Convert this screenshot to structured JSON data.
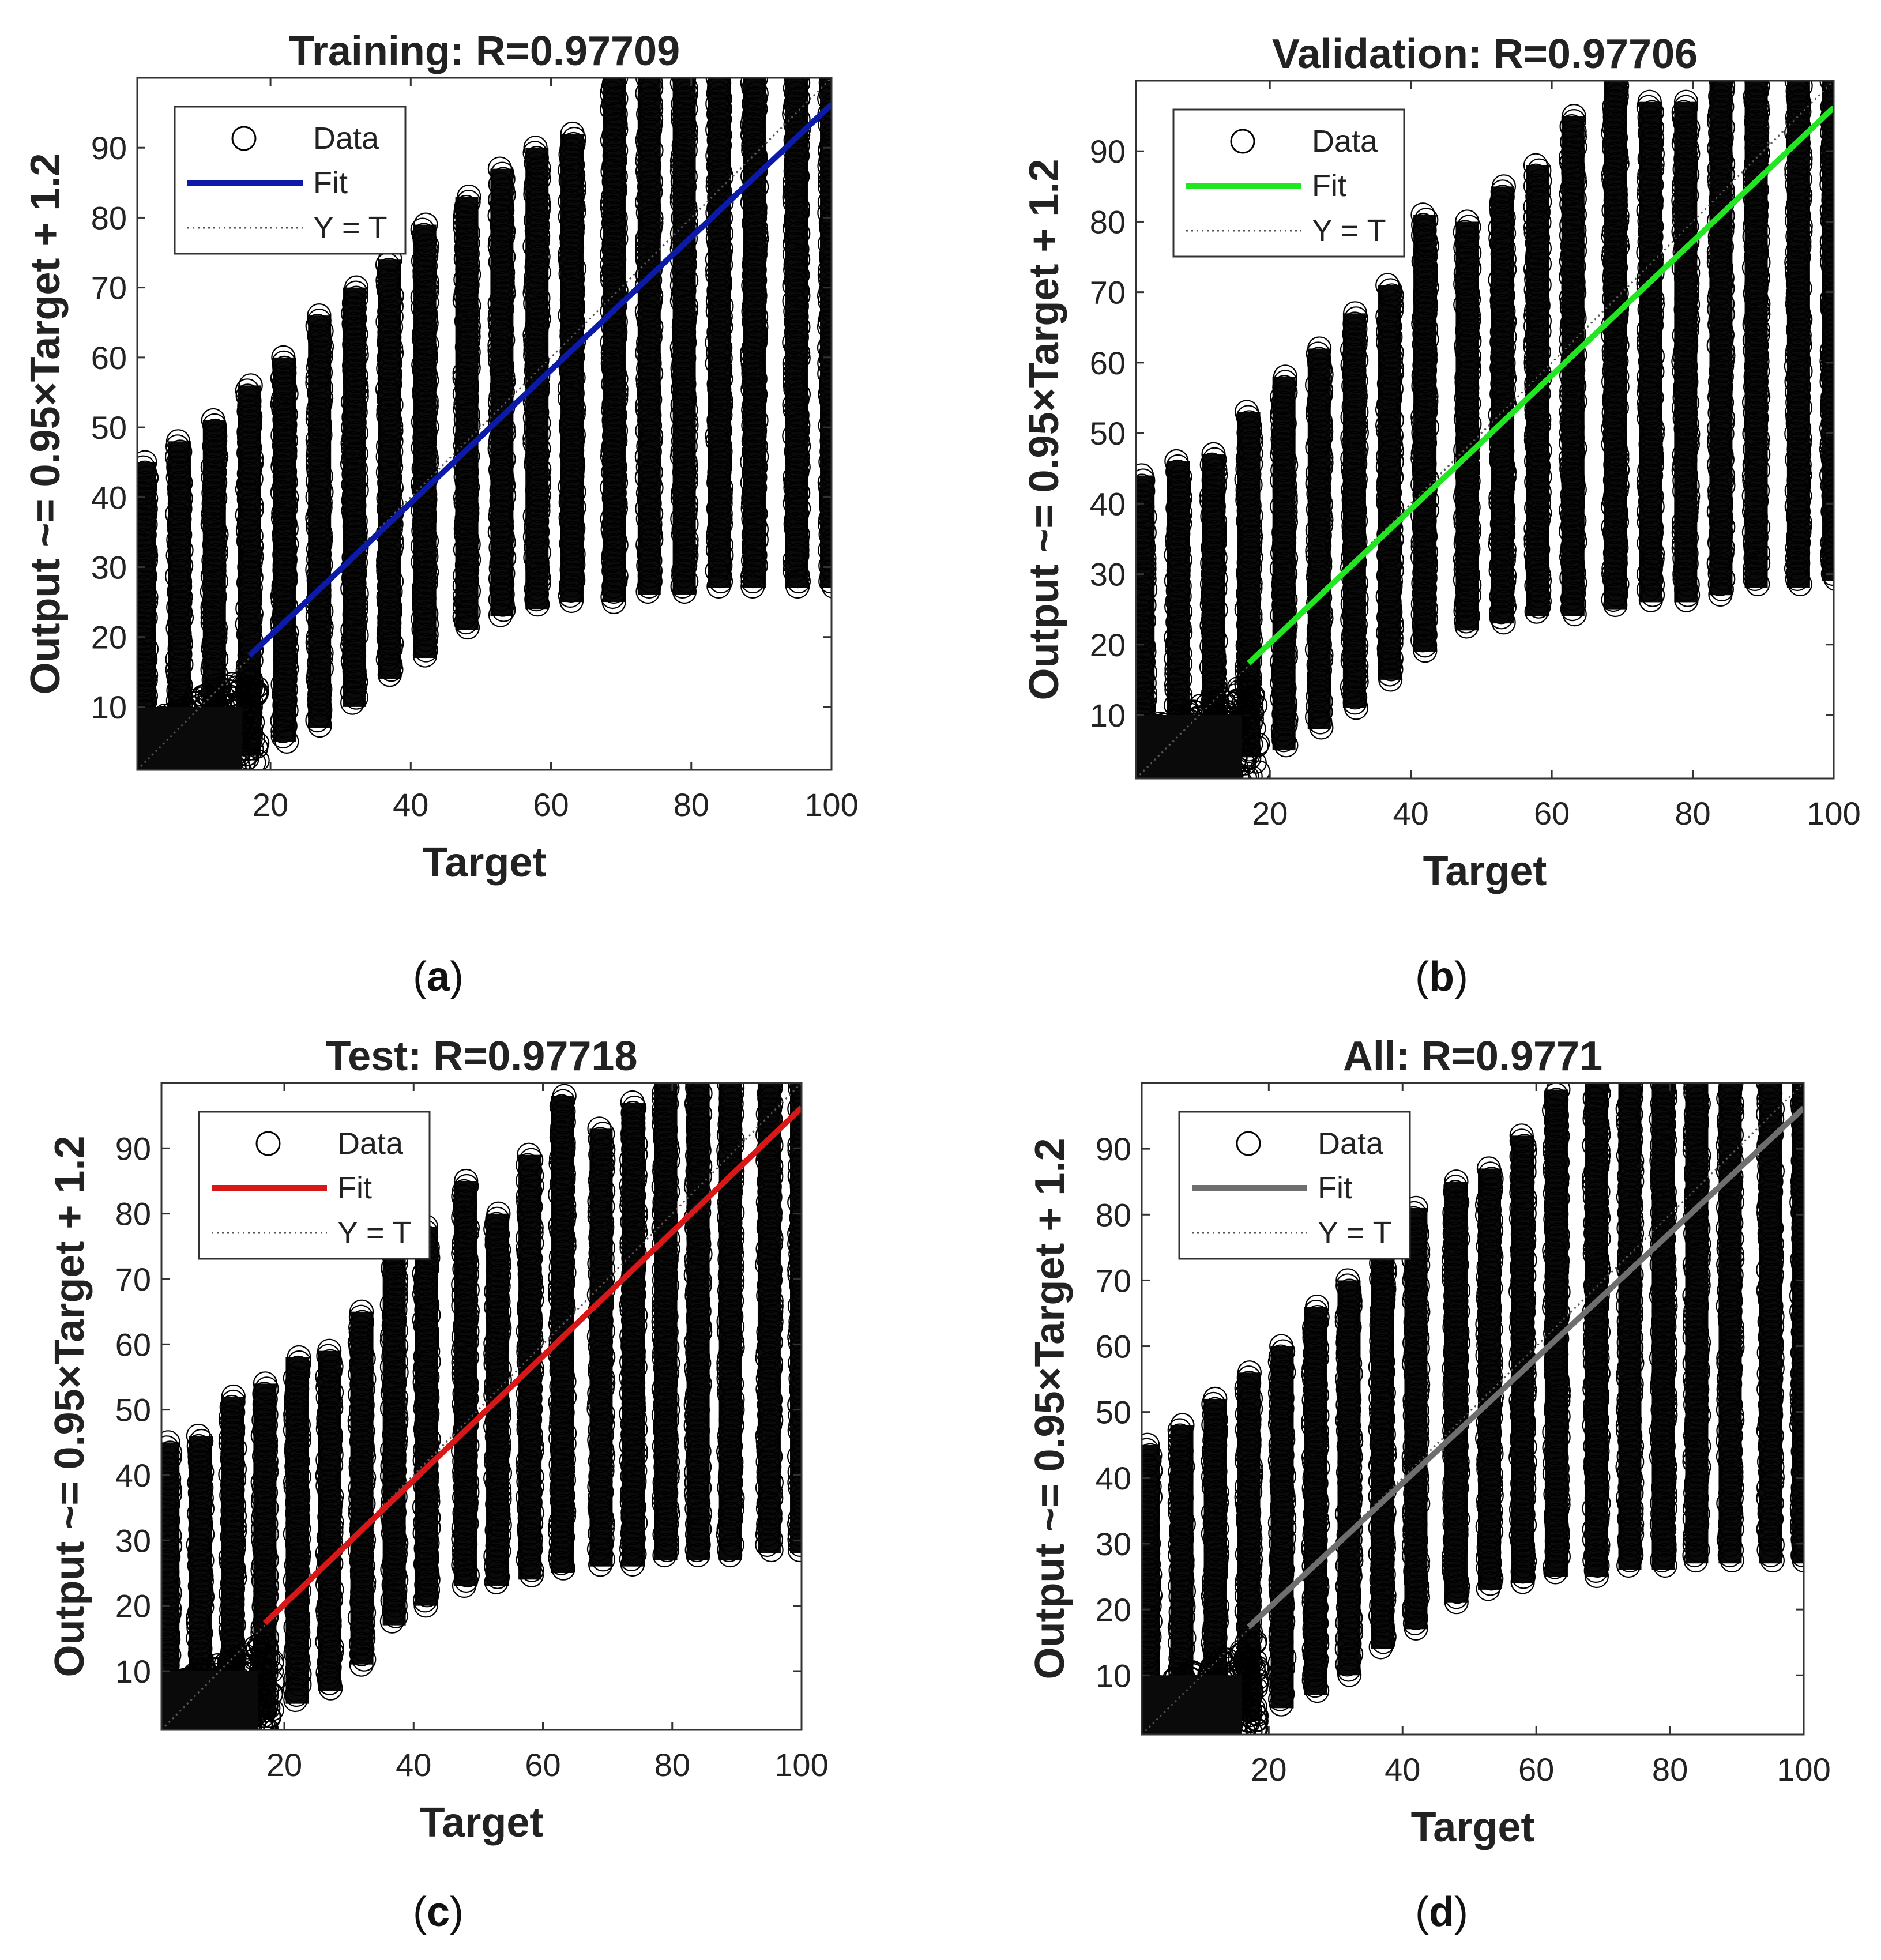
{
  "chart_data": [
    {
      "id": "a",
      "panel_label": "a",
      "type": "scatter",
      "title": "Training: R=0.97709",
      "xlabel": "Target",
      "ylabel": "Output ~= 0.95×Target + 1.2",
      "xlim": [
        1,
        100
      ],
      "ylim": [
        1,
        100
      ],
      "xticks": [
        20,
        40,
        60,
        80,
        100
      ],
      "yticks": [
        10,
        20,
        30,
        40,
        50,
        60,
        70,
        80,
        90
      ],
      "x_columns": [
        2,
        7,
        12,
        17,
        22,
        27,
        32,
        37,
        42,
        48,
        53,
        58,
        63,
        69,
        74,
        79,
        84,
        89,
        95,
        100
      ],
      "data_ranges": [
        [
          1,
          45
        ],
        [
          1,
          48
        ],
        [
          1,
          51
        ],
        [
          3,
          56
        ],
        [
          5,
          60
        ],
        [
          7,
          66
        ],
        [
          10,
          70
        ],
        [
          14,
          74
        ],
        [
          17,
          79
        ],
        [
          21,
          83
        ],
        [
          23,
          87
        ],
        [
          24,
          90
        ],
        [
          25,
          92
        ],
        [
          25,
          100
        ],
        [
          26,
          100
        ],
        [
          26,
          100
        ],
        [
          27,
          100
        ],
        [
          27,
          100
        ],
        [
          27,
          100
        ],
        [
          27,
          100
        ]
      ],
      "fit": {
        "slope": 0.95,
        "intercept": 1.2,
        "color": "#0b1aa8"
      },
      "legend": {
        "entries": [
          "Data",
          "Fit",
          "Y = T"
        ],
        "position": "top-left"
      }
    },
    {
      "id": "b",
      "panel_label": "b",
      "type": "scatter",
      "title": "Validation: R=0.97706",
      "xlabel": "Target",
      "ylabel": "Output ~= 0.95×Target + 1.2",
      "xlim": [
        1,
        100
      ],
      "ylim": [
        1,
        100
      ],
      "xticks": [
        20,
        40,
        60,
        80,
        100
      ],
      "yticks": [
        10,
        20,
        30,
        40,
        50,
        60,
        70,
        80,
        90
      ],
      "x_columns": [
        2,
        7,
        12,
        17,
        22,
        27,
        32,
        37,
        42,
        48,
        53,
        58,
        63,
        69,
        74,
        79,
        84,
        89,
        95,
        100
      ],
      "data_ranges": [
        [
          1,
          44
        ],
        [
          1,
          46
        ],
        [
          1,
          47
        ],
        [
          4,
          53
        ],
        [
          5,
          58
        ],
        [
          8,
          62
        ],
        [
          11,
          67
        ],
        [
          15,
          71
        ],
        [
          19,
          81
        ],
        [
          22,
          80
        ],
        [
          23,
          85
        ],
        [
          24,
          88
        ],
        [
          24,
          95
        ],
        [
          25,
          100
        ],
        [
          26,
          97
        ],
        [
          26,
          97
        ],
        [
          27,
          100
        ],
        [
          28,
          100
        ],
        [
          28,
          100
        ],
        [
          29,
          100
        ]
      ],
      "fit": {
        "slope": 0.95,
        "intercept": 1.2,
        "color": "#22e622"
      },
      "legend": {
        "entries": [
          "Data",
          "Fit",
          "Y = T"
        ],
        "position": "top-left"
      }
    },
    {
      "id": "c",
      "panel_label": "c",
      "type": "scatter",
      "title": "Test: R=0.97718",
      "xlabel": "Target",
      "ylabel": "Output ~= 0.95×Target + 1.2",
      "xlim": [
        1,
        100
      ],
      "ylim": [
        1,
        100
      ],
      "xticks": [
        20,
        40,
        60,
        80,
        100
      ],
      "yticks": [
        10,
        20,
        30,
        40,
        50,
        60,
        70,
        80,
        90
      ],
      "x_columns": [
        2,
        7,
        12,
        17,
        22,
        27,
        32,
        37,
        42,
        48,
        53,
        58,
        63,
        69,
        74,
        79,
        84,
        89,
        95,
        100
      ],
      "data_ranges": [
        [
          1,
          45
        ],
        [
          1,
          46
        ],
        [
          1,
          52
        ],
        [
          3,
          54
        ],
        [
          5,
          58
        ],
        [
          7,
          59
        ],
        [
          11,
          65
        ],
        [
          17,
          74
        ],
        [
          20,
          78
        ],
        [
          23,
          85
        ],
        [
          23,
          80
        ],
        [
          24,
          89
        ],
        [
          25,
          98
        ],
        [
          26,
          93
        ],
        [
          26,
          97
        ],
        [
          27,
          100
        ],
        [
          27,
          100
        ],
        [
          27,
          100
        ],
        [
          28,
          100
        ],
        [
          28,
          100
        ]
      ],
      "fit": {
        "slope": 0.95,
        "intercept": 1.2,
        "color": "#d81818"
      },
      "legend": {
        "entries": [
          "Data",
          "Fit",
          "Y = T"
        ],
        "position": "top-left"
      }
    },
    {
      "id": "d",
      "panel_label": "d",
      "type": "scatter",
      "title": "All: R=0.9771",
      "xlabel": "Target",
      "ylabel": "Output ~= 0.95×Target + 1.2",
      "xlim": [
        1,
        100
      ],
      "ylim": [
        1,
        100
      ],
      "xticks": [
        20,
        40,
        60,
        80,
        100
      ],
      "yticks": [
        10,
        20,
        30,
        40,
        50,
        60,
        70,
        80,
        90
      ],
      "x_columns": [
        2,
        7,
        12,
        17,
        22,
        27,
        32,
        37,
        42,
        48,
        53,
        58,
        63,
        69,
        74,
        79,
        84,
        89,
        95,
        100
      ],
      "data_ranges": [
        [
          1,
          45
        ],
        [
          1,
          48
        ],
        [
          1,
          52
        ],
        [
          3,
          56
        ],
        [
          5,
          60
        ],
        [
          7,
          66
        ],
        [
          10,
          70
        ],
        [
          14,
          75
        ],
        [
          17,
          81
        ],
        [
          21,
          85
        ],
        [
          23,
          87
        ],
        [
          24,
          92
        ],
        [
          25,
          99
        ],
        [
          25,
          100
        ],
        [
          26,
          100
        ],
        [
          26,
          100
        ],
        [
          27,
          100
        ],
        [
          27,
          100
        ],
        [
          27,
          100
        ],
        [
          27,
          100
        ]
      ],
      "fit": {
        "slope": 0.95,
        "intercept": 1.2,
        "color": "#6e6e6e"
      },
      "legend": {
        "entries": [
          "Data",
          "Fit",
          "Y = T"
        ],
        "position": "top-left"
      }
    }
  ]
}
